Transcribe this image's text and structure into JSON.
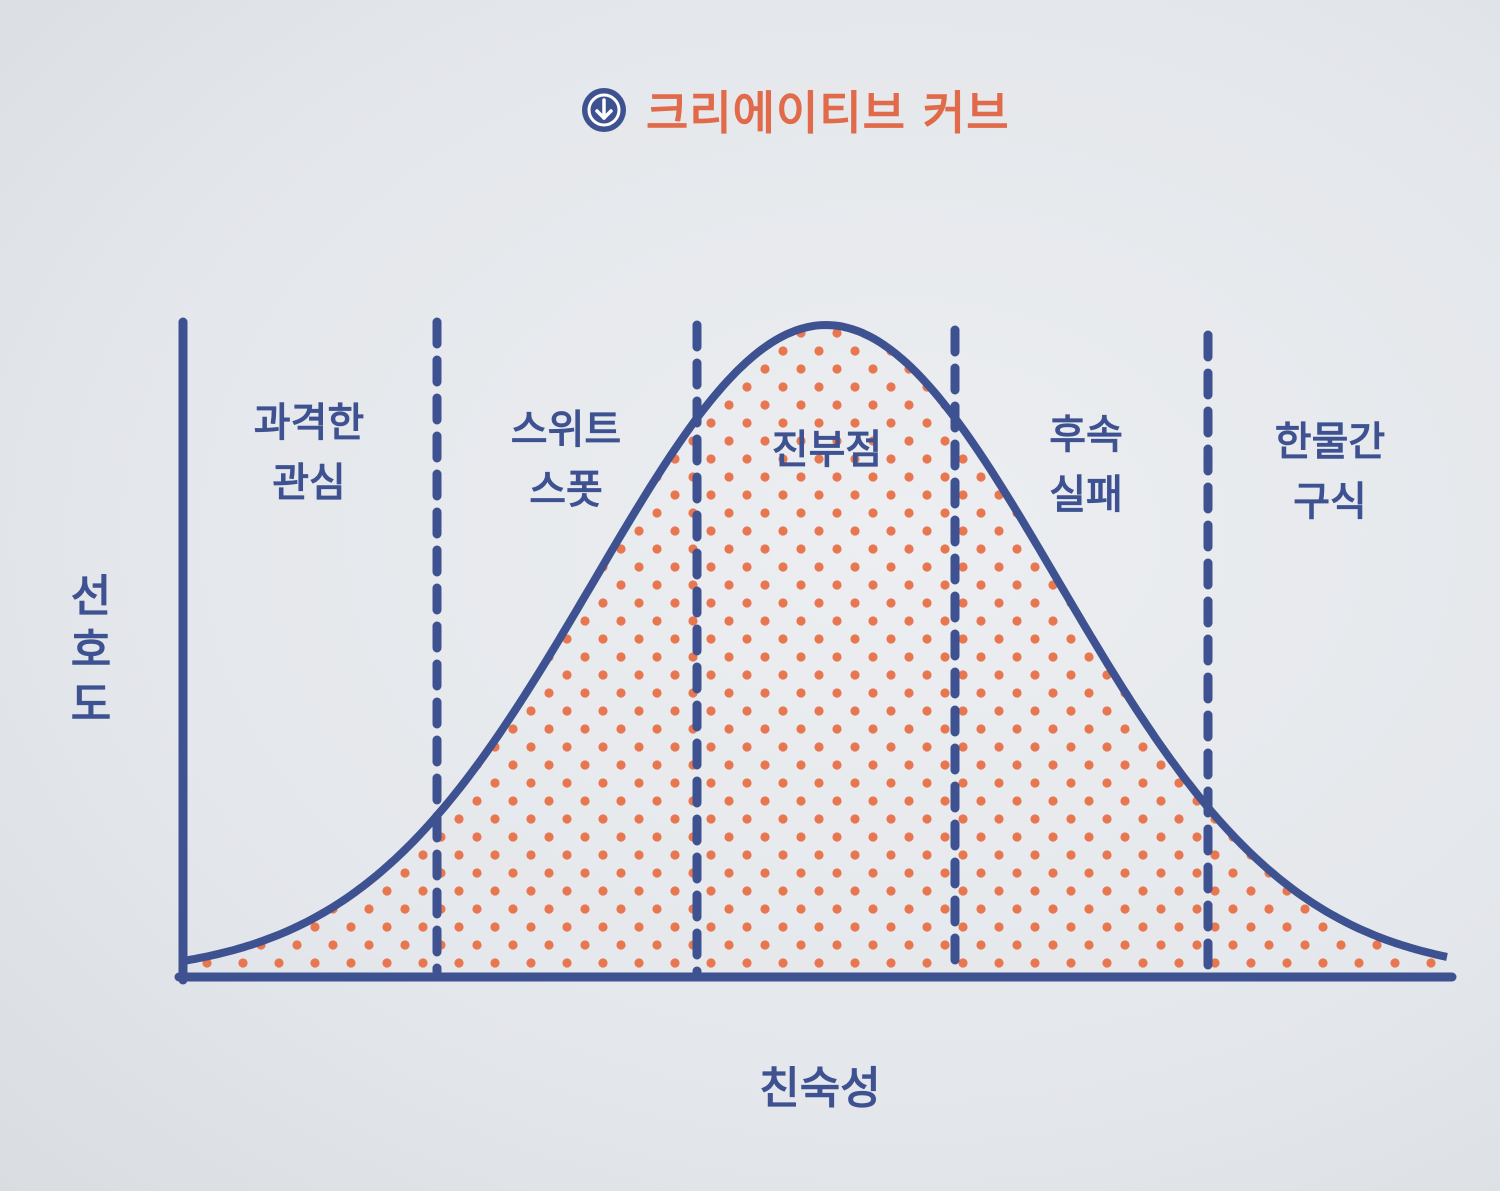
{
  "title": "크리에이티브 커브",
  "title_icon": "down-arrow-circle-icon",
  "ylabel": [
    "선",
    "호",
    "도"
  ],
  "xlabel": "친숙성",
  "zones": [
    {
      "line1": "과격한",
      "line2": "관심"
    },
    {
      "line1": "스위트",
      "line2": "스폿"
    },
    {
      "line1": "진부점",
      "line2": ""
    },
    {
      "line1": "후속",
      "line2": "실패"
    },
    {
      "line1": "한물간",
      "line2": "구식"
    }
  ],
  "colors": {
    "axis": "#3e5291",
    "curve": "#3e5291",
    "dots": "#e8764f",
    "title": "#e06a4a"
  }
}
